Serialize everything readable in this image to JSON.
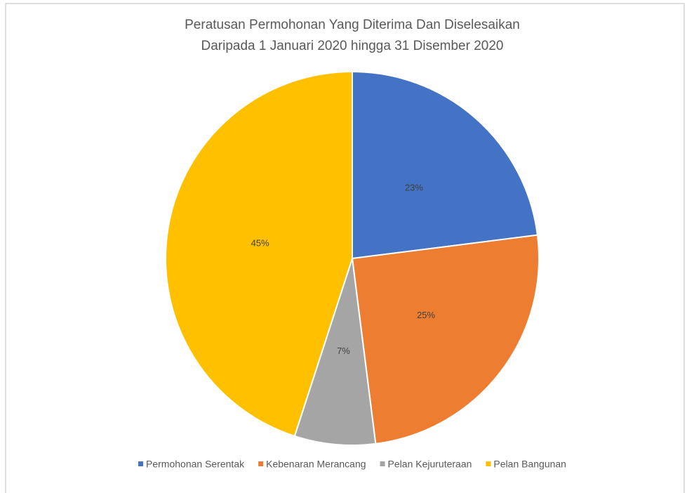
{
  "chart_data": {
    "type": "pie",
    "title": [
      "Peratusan Permohonan Yang Diterima Dan Diselesaikan",
      "Daripada 1 Januari 2020 hingga 31 Disember 2020"
    ],
    "categories": [
      "Permohonan Serentak",
      "Kebenaran Merancang",
      "Pelan Kejuruteraan",
      "Pelan Bangunan"
    ],
    "values": [
      23,
      25,
      7,
      45
    ],
    "value_labels": [
      "23%",
      "25%",
      "7%",
      "45%"
    ],
    "colors": [
      "#4472c4",
      "#ed7d31",
      "#a5a5a5",
      "#ffc000"
    ],
    "legend": "bottom"
  }
}
